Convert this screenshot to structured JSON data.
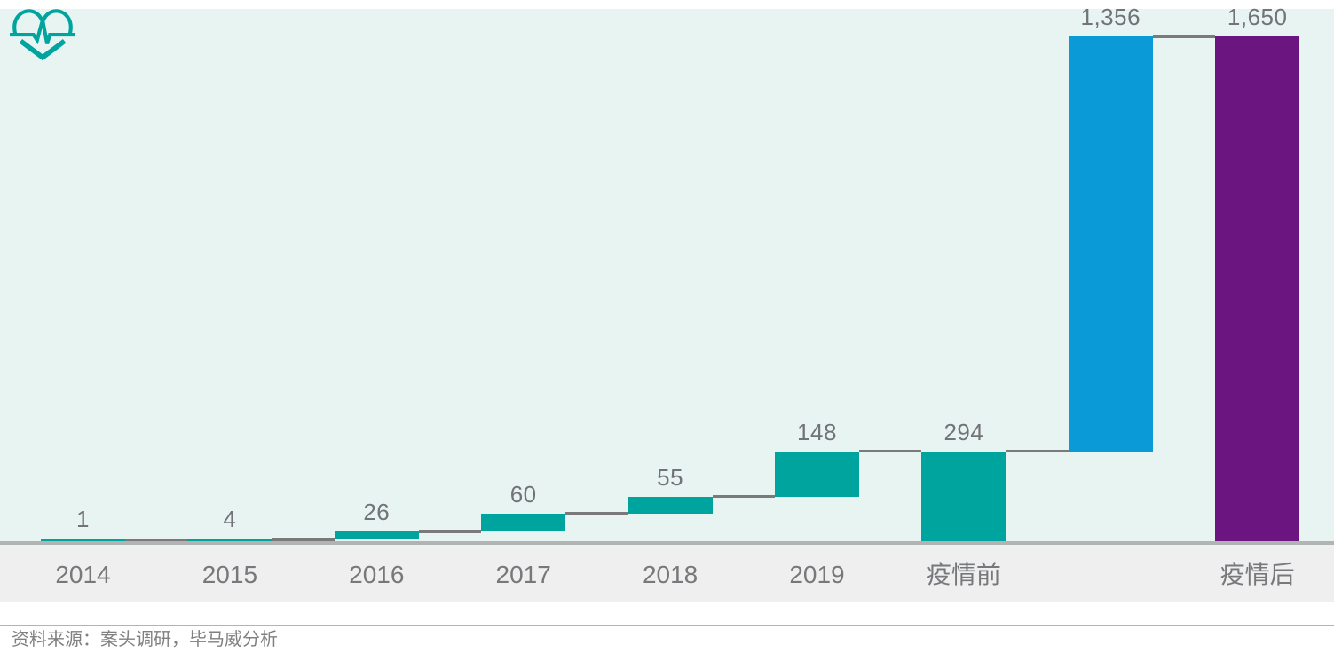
{
  "chart_data": {
    "type": "bar",
    "subtype": "waterfall",
    "title": "",
    "xlabel": "",
    "ylabel": "",
    "ylim": [
      0,
      1650
    ],
    "grid": "off",
    "legend": "none",
    "categories": [
      "2014",
      "2015",
      "2016",
      "2017",
      "2018",
      "2019",
      "疫情前",
      "",
      "疫情后"
    ],
    "bars": [
      {
        "label": "2014",
        "value": 1,
        "display": "1",
        "start": 0,
        "end": 1,
        "kind": "increment",
        "color_key": "teal"
      },
      {
        "label": "2015",
        "value": 4,
        "display": "4",
        "start": 1,
        "end": 5,
        "kind": "increment",
        "color_key": "teal"
      },
      {
        "label": "2016",
        "value": 26,
        "display": "26",
        "start": 5,
        "end": 31,
        "kind": "increment",
        "color_key": "teal"
      },
      {
        "label": "2017",
        "value": 60,
        "display": "60",
        "start": 31,
        "end": 91,
        "kind": "increment",
        "color_key": "teal"
      },
      {
        "label": "2018",
        "value": 55,
        "display": "55",
        "start": 91,
        "end": 146,
        "kind": "increment",
        "color_key": "teal"
      },
      {
        "label": "2019",
        "value": 148,
        "display": "148",
        "start": 146,
        "end": 294,
        "kind": "increment",
        "color_key": "teal"
      },
      {
        "label": "疫情前",
        "value": 294,
        "display": "294",
        "start": 0,
        "end": 294,
        "kind": "total",
        "color_key": "teal"
      },
      {
        "label": "",
        "value": 1356,
        "display": "1,356",
        "start": 294,
        "end": 1650,
        "kind": "increment",
        "color_key": "blue"
      },
      {
        "label": "疫情后",
        "value": 1650,
        "display": "1,650",
        "start": 0,
        "end": 1650,
        "kind": "total",
        "color_key": "purple"
      }
    ]
  },
  "colors": {
    "teal": "#00a49e",
    "blue": "#0a9ad7",
    "purple": "#6b1580",
    "plot_bg": "#e7f4f2",
    "band_bg": "#efefef",
    "baseline": "#b3b3b3",
    "connector": "#7a7a7a",
    "text_value": "#727376",
    "text_axis": "#77787b",
    "text_muted": "#808080"
  },
  "icons": {
    "logo": "heartbeat-pulse-icon"
  },
  "footer": {
    "source_text": "资料来源：案头调研，毕马威分析"
  }
}
